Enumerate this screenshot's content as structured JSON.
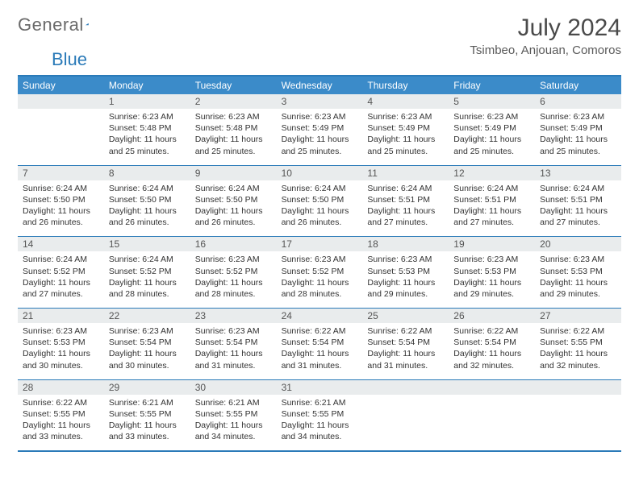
{
  "logo": {
    "text1": "General",
    "text2": "Blue",
    "triangle_color": "#2a7ab8"
  },
  "title": "July 2024",
  "location": "Tsimbeo, Anjouan, Comoros",
  "colors": {
    "header_bg": "#3b8bc9",
    "border": "#2a7ab8",
    "daynum_bg": "#e9eced",
    "text": "#333333",
    "title_text": "#4a4a4a"
  },
  "day_names": [
    "Sunday",
    "Monday",
    "Tuesday",
    "Wednesday",
    "Thursday",
    "Friday",
    "Saturday"
  ],
  "weeks": [
    {
      "nums": [
        "",
        "1",
        "2",
        "3",
        "4",
        "5",
        "6"
      ],
      "cells": [
        null,
        {
          "sunrise": "Sunrise: 6:23 AM",
          "sunset": "Sunset: 5:48 PM",
          "dayl1": "Daylight: 11 hours",
          "dayl2": "and 25 minutes."
        },
        {
          "sunrise": "Sunrise: 6:23 AM",
          "sunset": "Sunset: 5:48 PM",
          "dayl1": "Daylight: 11 hours",
          "dayl2": "and 25 minutes."
        },
        {
          "sunrise": "Sunrise: 6:23 AM",
          "sunset": "Sunset: 5:49 PM",
          "dayl1": "Daylight: 11 hours",
          "dayl2": "and 25 minutes."
        },
        {
          "sunrise": "Sunrise: 6:23 AM",
          "sunset": "Sunset: 5:49 PM",
          "dayl1": "Daylight: 11 hours",
          "dayl2": "and 25 minutes."
        },
        {
          "sunrise": "Sunrise: 6:23 AM",
          "sunset": "Sunset: 5:49 PM",
          "dayl1": "Daylight: 11 hours",
          "dayl2": "and 25 minutes."
        },
        {
          "sunrise": "Sunrise: 6:23 AM",
          "sunset": "Sunset: 5:49 PM",
          "dayl1": "Daylight: 11 hours",
          "dayl2": "and 25 minutes."
        }
      ]
    },
    {
      "nums": [
        "7",
        "8",
        "9",
        "10",
        "11",
        "12",
        "13"
      ],
      "cells": [
        {
          "sunrise": "Sunrise: 6:24 AM",
          "sunset": "Sunset: 5:50 PM",
          "dayl1": "Daylight: 11 hours",
          "dayl2": "and 26 minutes."
        },
        {
          "sunrise": "Sunrise: 6:24 AM",
          "sunset": "Sunset: 5:50 PM",
          "dayl1": "Daylight: 11 hours",
          "dayl2": "and 26 minutes."
        },
        {
          "sunrise": "Sunrise: 6:24 AM",
          "sunset": "Sunset: 5:50 PM",
          "dayl1": "Daylight: 11 hours",
          "dayl2": "and 26 minutes."
        },
        {
          "sunrise": "Sunrise: 6:24 AM",
          "sunset": "Sunset: 5:50 PM",
          "dayl1": "Daylight: 11 hours",
          "dayl2": "and 26 minutes."
        },
        {
          "sunrise": "Sunrise: 6:24 AM",
          "sunset": "Sunset: 5:51 PM",
          "dayl1": "Daylight: 11 hours",
          "dayl2": "and 27 minutes."
        },
        {
          "sunrise": "Sunrise: 6:24 AM",
          "sunset": "Sunset: 5:51 PM",
          "dayl1": "Daylight: 11 hours",
          "dayl2": "and 27 minutes."
        },
        {
          "sunrise": "Sunrise: 6:24 AM",
          "sunset": "Sunset: 5:51 PM",
          "dayl1": "Daylight: 11 hours",
          "dayl2": "and 27 minutes."
        }
      ]
    },
    {
      "nums": [
        "14",
        "15",
        "16",
        "17",
        "18",
        "19",
        "20"
      ],
      "cells": [
        {
          "sunrise": "Sunrise: 6:24 AM",
          "sunset": "Sunset: 5:52 PM",
          "dayl1": "Daylight: 11 hours",
          "dayl2": "and 27 minutes."
        },
        {
          "sunrise": "Sunrise: 6:24 AM",
          "sunset": "Sunset: 5:52 PM",
          "dayl1": "Daylight: 11 hours",
          "dayl2": "and 28 minutes."
        },
        {
          "sunrise": "Sunrise: 6:23 AM",
          "sunset": "Sunset: 5:52 PM",
          "dayl1": "Daylight: 11 hours",
          "dayl2": "and 28 minutes."
        },
        {
          "sunrise": "Sunrise: 6:23 AM",
          "sunset": "Sunset: 5:52 PM",
          "dayl1": "Daylight: 11 hours",
          "dayl2": "and 28 minutes."
        },
        {
          "sunrise": "Sunrise: 6:23 AM",
          "sunset": "Sunset: 5:53 PM",
          "dayl1": "Daylight: 11 hours",
          "dayl2": "and 29 minutes."
        },
        {
          "sunrise": "Sunrise: 6:23 AM",
          "sunset": "Sunset: 5:53 PM",
          "dayl1": "Daylight: 11 hours",
          "dayl2": "and 29 minutes."
        },
        {
          "sunrise": "Sunrise: 6:23 AM",
          "sunset": "Sunset: 5:53 PM",
          "dayl1": "Daylight: 11 hours",
          "dayl2": "and 29 minutes."
        }
      ]
    },
    {
      "nums": [
        "21",
        "22",
        "23",
        "24",
        "25",
        "26",
        "27"
      ],
      "cells": [
        {
          "sunrise": "Sunrise: 6:23 AM",
          "sunset": "Sunset: 5:53 PM",
          "dayl1": "Daylight: 11 hours",
          "dayl2": "and 30 minutes."
        },
        {
          "sunrise": "Sunrise: 6:23 AM",
          "sunset": "Sunset: 5:54 PM",
          "dayl1": "Daylight: 11 hours",
          "dayl2": "and 30 minutes."
        },
        {
          "sunrise": "Sunrise: 6:23 AM",
          "sunset": "Sunset: 5:54 PM",
          "dayl1": "Daylight: 11 hours",
          "dayl2": "and 31 minutes."
        },
        {
          "sunrise": "Sunrise: 6:22 AM",
          "sunset": "Sunset: 5:54 PM",
          "dayl1": "Daylight: 11 hours",
          "dayl2": "and 31 minutes."
        },
        {
          "sunrise": "Sunrise: 6:22 AM",
          "sunset": "Sunset: 5:54 PM",
          "dayl1": "Daylight: 11 hours",
          "dayl2": "and 31 minutes."
        },
        {
          "sunrise": "Sunrise: 6:22 AM",
          "sunset": "Sunset: 5:54 PM",
          "dayl1": "Daylight: 11 hours",
          "dayl2": "and 32 minutes."
        },
        {
          "sunrise": "Sunrise: 6:22 AM",
          "sunset": "Sunset: 5:55 PM",
          "dayl1": "Daylight: 11 hours",
          "dayl2": "and 32 minutes."
        }
      ]
    },
    {
      "nums": [
        "28",
        "29",
        "30",
        "31",
        "",
        "",
        ""
      ],
      "cells": [
        {
          "sunrise": "Sunrise: 6:22 AM",
          "sunset": "Sunset: 5:55 PM",
          "dayl1": "Daylight: 11 hours",
          "dayl2": "and 33 minutes."
        },
        {
          "sunrise": "Sunrise: 6:21 AM",
          "sunset": "Sunset: 5:55 PM",
          "dayl1": "Daylight: 11 hours",
          "dayl2": "and 33 minutes."
        },
        {
          "sunrise": "Sunrise: 6:21 AM",
          "sunset": "Sunset: 5:55 PM",
          "dayl1": "Daylight: 11 hours",
          "dayl2": "and 34 minutes."
        },
        {
          "sunrise": "Sunrise: 6:21 AM",
          "sunset": "Sunset: 5:55 PM",
          "dayl1": "Daylight: 11 hours",
          "dayl2": "and 34 minutes."
        },
        null,
        null,
        null
      ]
    }
  ]
}
